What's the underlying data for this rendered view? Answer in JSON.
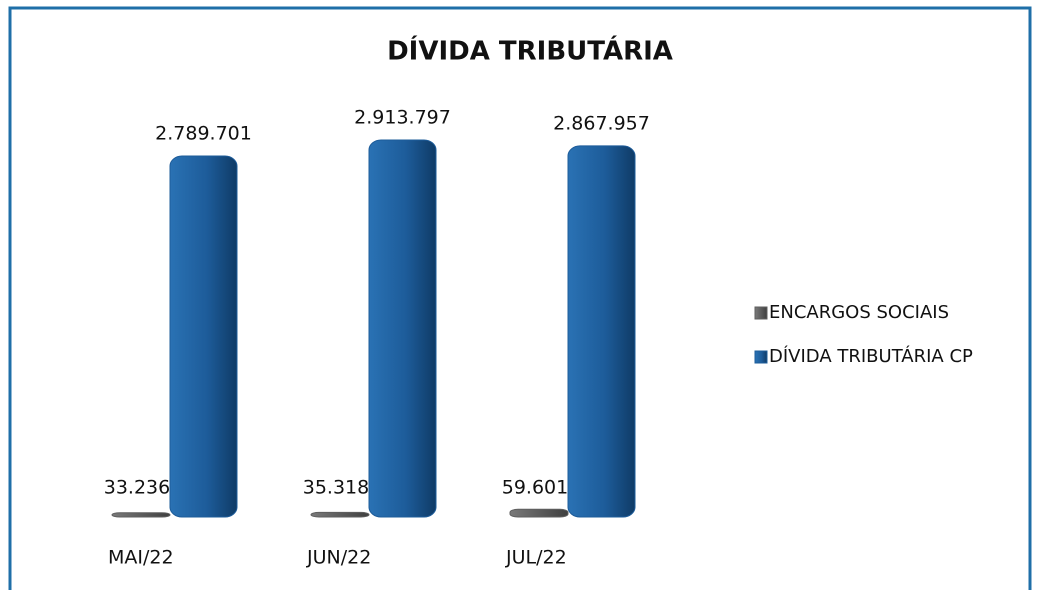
{
  "chart_data": {
    "type": "bar",
    "title": "DÍVIDA TRIBUTÁRIA",
    "categories": [
      "MAI/22",
      "JUN/22",
      "JUL/22"
    ],
    "series": [
      {
        "name": "ENCARGOS SOCIAIS",
        "color": "#5f5f5f",
        "values": [
          33236,
          35318,
          59601
        ],
        "value_labels": [
          "33.236",
          "35.318",
          "59.601"
        ]
      },
      {
        "name": "DÍVIDA TRIBUTÁRIA CP",
        "color": "#1d5c9a",
        "values": [
          2789701,
          2913797,
          2867957
        ],
        "value_labels": [
          "2.789.701",
          "2.913.797",
          "2.867.957"
        ]
      }
    ],
    "legend": "right"
  }
}
